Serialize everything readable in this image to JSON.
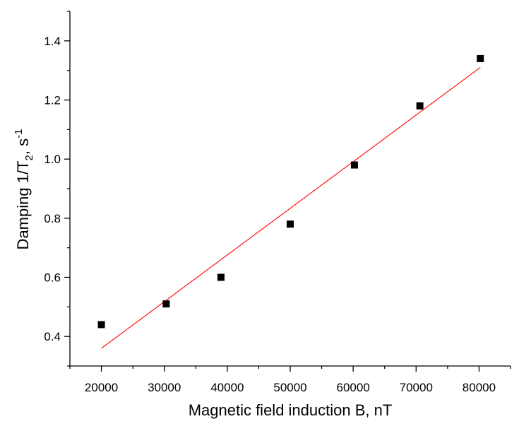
{
  "chart_data": {
    "type": "scatter",
    "title": "",
    "xlabel": "Magnetic field induction B, nT",
    "ylabel": {
      "prefix": "Damping 1/T",
      "subscript": "2",
      "middle": ", s",
      "superscript": "-1"
    },
    "xlim": [
      15000,
      85000
    ],
    "ylim": [
      0.3,
      1.5
    ],
    "x_ticks": [
      20000,
      30000,
      40000,
      50000,
      60000,
      70000,
      80000
    ],
    "y_ticks": [
      0.4,
      0.6,
      0.8,
      1.0,
      1.2,
      1.4
    ],
    "x_tick_labels": [
      "20000",
      "30000",
      "40000",
      "50000",
      "60000",
      "70000",
      "80000"
    ],
    "y_tick_labels": [
      "0.4",
      "0.6",
      "0.8",
      "1.0",
      "1.2",
      "1.4"
    ],
    "grid": false,
    "series": [
      {
        "marker": "square",
        "color": "#000000",
        "points": [
          {
            "x": 20000,
            "y": 0.44
          },
          {
            "x": 30300,
            "y": 0.51
          },
          {
            "x": 39000,
            "y": 0.6
          },
          {
            "x": 50000,
            "y": 0.78
          },
          {
            "x": 60200,
            "y": 0.98
          },
          {
            "x": 70600,
            "y": 1.18
          },
          {
            "x": 80200,
            "y": 1.34
          }
        ]
      }
    ],
    "fit_line": {
      "color": "#ff0000",
      "points": [
        {
          "x": 20000,
          "y": 0.36
        },
        {
          "x": 80200,
          "y": 1.31
        }
      ]
    }
  }
}
